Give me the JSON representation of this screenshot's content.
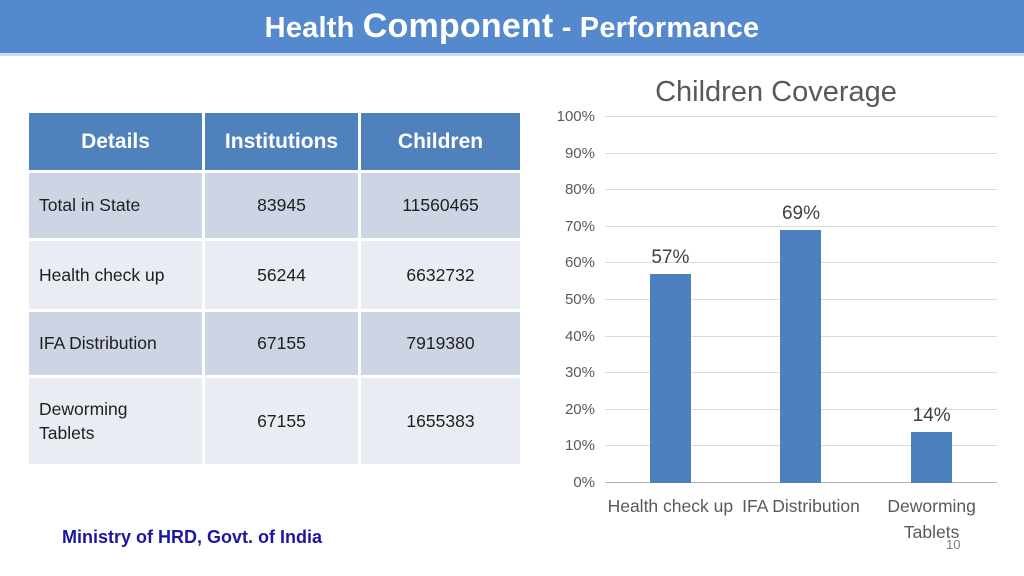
{
  "header": {
    "title_part1": "Health ",
    "title_part2": "Component",
    "title_part3": " - Performance"
  },
  "table": {
    "headers": [
      "Details",
      "Institutions",
      "Children"
    ],
    "rows": [
      {
        "details": "Total in State",
        "institutions": "83945",
        "children": "11560465"
      },
      {
        "details": "Health check up",
        "institutions": "56244",
        "children": "6632732"
      },
      {
        "details": "IFA Distribution",
        "institutions": "67155",
        "children": "7919380"
      },
      {
        "details": "Deworming Tablets",
        "institutions": "67155",
        "children": "1655383"
      }
    ]
  },
  "chart_data": {
    "type": "bar",
    "title": "Children Coverage",
    "categories": [
      "Health check up",
      "IFA Distribution",
      "Deworming Tablets"
    ],
    "values": [
      57,
      69,
      14
    ],
    "data_labels": [
      "57%",
      "69%",
      "14%"
    ],
    "y_ticks": [
      "100%",
      "90%",
      "80%",
      "70%",
      "60%",
      "50%",
      "40%",
      "30%",
      "20%",
      "10%",
      "0%"
    ],
    "ylim": [
      0,
      100
    ],
    "xlabel": "",
    "ylabel": "",
    "grid": "horizontal",
    "legend": "none"
  },
  "footer": {
    "credit": "Ministry of HRD, Govt. of India",
    "page_number": "10"
  },
  "colors": {
    "header_bar": "#5589ce",
    "table_header": "#4f81bd",
    "row_band_dark": "#cdd4e3",
    "row_band_light": "#e9ecf3",
    "bar_fill": "#4d80be",
    "gridline": "#dcdcdc",
    "axis_line": "#b3b3b3",
    "chart_text": "#595959",
    "data_label": "#3f3f3f",
    "footer_text": "#1c17a0",
    "page_number": "#7f7f7f"
  }
}
